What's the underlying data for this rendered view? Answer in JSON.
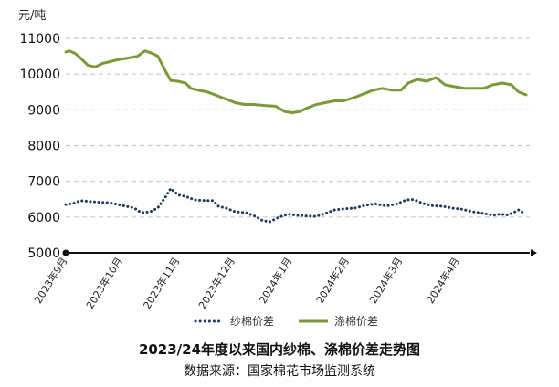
{
  "unit_label": "元/吨",
  "title": "2023/24年度以来国内纱棉、涤棉价差走势图",
  "source": "数据来源：国家棉花市场监测系统",
  "colors": {
    "yarn": "#1f3a5f",
    "poly": "#7a9a3a",
    "grid": "#c8c8c8",
    "axis": "#111111"
  },
  "chart_data": {
    "type": "line",
    "xlabel": "",
    "ylabel": "元/吨",
    "ylim": [
      5000,
      11000
    ],
    "yticks": [
      5000,
      6000,
      7000,
      8000,
      9000,
      10000,
      11000
    ],
    "x_tick_labels": [
      "2023年9月",
      "2023年10月",
      "2023年11月",
      "2023年12月",
      "2024年1月",
      "2024年2月",
      "2024年3月",
      "2024年4月"
    ],
    "x_range": [
      "2023-09-01",
      "2024-05-10"
    ],
    "grid": true,
    "legend_position": "bottom",
    "series": [
      {
        "name": "纱棉价差",
        "style": "dotted",
        "points": [
          [
            "2023-09-01",
            6350
          ],
          [
            "2023-09-05",
            6380
          ],
          [
            "2023-09-09",
            6460
          ],
          [
            "2023-09-13",
            6440
          ],
          [
            "2023-09-18",
            6420
          ],
          [
            "2023-09-25",
            6400
          ],
          [
            "2023-10-03",
            6310
          ],
          [
            "2023-10-08",
            6260
          ],
          [
            "2023-10-12",
            6120
          ],
          [
            "2023-10-17",
            6150
          ],
          [
            "2023-10-21",
            6260
          ],
          [
            "2023-10-25",
            6550
          ],
          [
            "2023-10-28",
            6800
          ],
          [
            "2023-11-01",
            6620
          ],
          [
            "2023-11-05",
            6580
          ],
          [
            "2023-11-10",
            6480
          ],
          [
            "2023-11-16",
            6460
          ],
          [
            "2023-11-20",
            6460
          ],
          [
            "2023-11-23",
            6300
          ],
          [
            "2023-11-27",
            6250
          ],
          [
            "2023-12-02",
            6150
          ],
          [
            "2023-12-08",
            6120
          ],
          [
            "2023-12-13",
            6020
          ],
          [
            "2023-12-17",
            5900
          ],
          [
            "2023-12-21",
            5870
          ],
          [
            "2023-12-26",
            6000
          ],
          [
            "2023-12-31",
            6080
          ],
          [
            "2024-01-05",
            6050
          ],
          [
            "2024-01-10",
            6030
          ],
          [
            "2024-01-15",
            6020
          ],
          [
            "2024-01-20",
            6100
          ],
          [
            "2024-01-25",
            6200
          ],
          [
            "2024-01-30",
            6230
          ],
          [
            "2024-02-05",
            6250
          ],
          [
            "2024-02-10",
            6320
          ],
          [
            "2024-02-16",
            6370
          ],
          [
            "2024-02-22",
            6310
          ],
          [
            "2024-02-28",
            6370
          ],
          [
            "2024-03-04",
            6480
          ],
          [
            "2024-03-08",
            6490
          ],
          [
            "2024-03-13",
            6380
          ],
          [
            "2024-03-18",
            6320
          ],
          [
            "2024-03-24",
            6300
          ],
          [
            "2024-03-29",
            6250
          ],
          [
            "2024-04-03",
            6220
          ],
          [
            "2024-04-09",
            6150
          ],
          [
            "2024-04-15",
            6100
          ],
          [
            "2024-04-20",
            6050
          ],
          [
            "2024-04-24",
            6080
          ],
          [
            "2024-04-28",
            6060
          ],
          [
            "2024-05-01",
            6120
          ],
          [
            "2024-05-04",
            6200
          ],
          [
            "2024-05-07",
            6100
          ]
        ]
      },
      {
        "name": "涤棉价差",
        "style": "solid",
        "points": [
          [
            "2023-09-01",
            10620
          ],
          [
            "2023-09-03",
            10650
          ],
          [
            "2023-09-06",
            10580
          ],
          [
            "2023-09-09",
            10450
          ],
          [
            "2023-09-13",
            10250
          ],
          [
            "2023-09-17",
            10200
          ],
          [
            "2023-09-21",
            10300
          ],
          [
            "2023-09-25",
            10350
          ],
          [
            "2023-09-29",
            10400
          ],
          [
            "2023-10-05",
            10450
          ],
          [
            "2023-10-10",
            10500
          ],
          [
            "2023-10-14",
            10650
          ],
          [
            "2023-10-18",
            10580
          ],
          [
            "2023-10-21",
            10500
          ],
          [
            "2023-10-25",
            10100
          ],
          [
            "2023-10-28",
            9820
          ],
          [
            "2023-11-01",
            9800
          ],
          [
            "2023-11-05",
            9750
          ],
          [
            "2023-11-08",
            9600
          ],
          [
            "2023-11-12",
            9550
          ],
          [
            "2023-11-17",
            9500
          ],
          [
            "2023-11-22",
            9400
          ],
          [
            "2023-11-27",
            9300
          ],
          [
            "2023-12-02",
            9200
          ],
          [
            "2023-12-07",
            9150
          ],
          [
            "2023-12-12",
            9150
          ],
          [
            "2023-12-18",
            9120
          ],
          [
            "2023-12-24",
            9100
          ],
          [
            "2023-12-29",
            8950
          ],
          [
            "2024-01-02",
            8920
          ],
          [
            "2024-01-06",
            8950
          ],
          [
            "2024-01-10",
            9050
          ],
          [
            "2024-01-15",
            9150
          ],
          [
            "2024-01-20",
            9200
          ],
          [
            "2024-01-25",
            9250
          ],
          [
            "2024-01-30",
            9250
          ],
          [
            "2024-02-05",
            9350
          ],
          [
            "2024-02-10",
            9450
          ],
          [
            "2024-02-15",
            9550
          ],
          [
            "2024-02-20",
            9600
          ],
          [
            "2024-02-25",
            9550
          ],
          [
            "2024-03-01",
            9550
          ],
          [
            "2024-03-05",
            9750
          ],
          [
            "2024-03-10",
            9850
          ],
          [
            "2024-03-15",
            9800
          ],
          [
            "2024-03-20",
            9900
          ],
          [
            "2024-03-25",
            9700
          ],
          [
            "2024-03-30",
            9650
          ],
          [
            "2024-04-05",
            9600
          ],
          [
            "2024-04-10",
            9600
          ],
          [
            "2024-04-15",
            9600
          ],
          [
            "2024-04-20",
            9700
          ],
          [
            "2024-04-25",
            9750
          ],
          [
            "2024-04-30",
            9700
          ],
          [
            "2024-05-04",
            9500
          ],
          [
            "2024-05-08",
            9420
          ]
        ]
      }
    ]
  }
}
